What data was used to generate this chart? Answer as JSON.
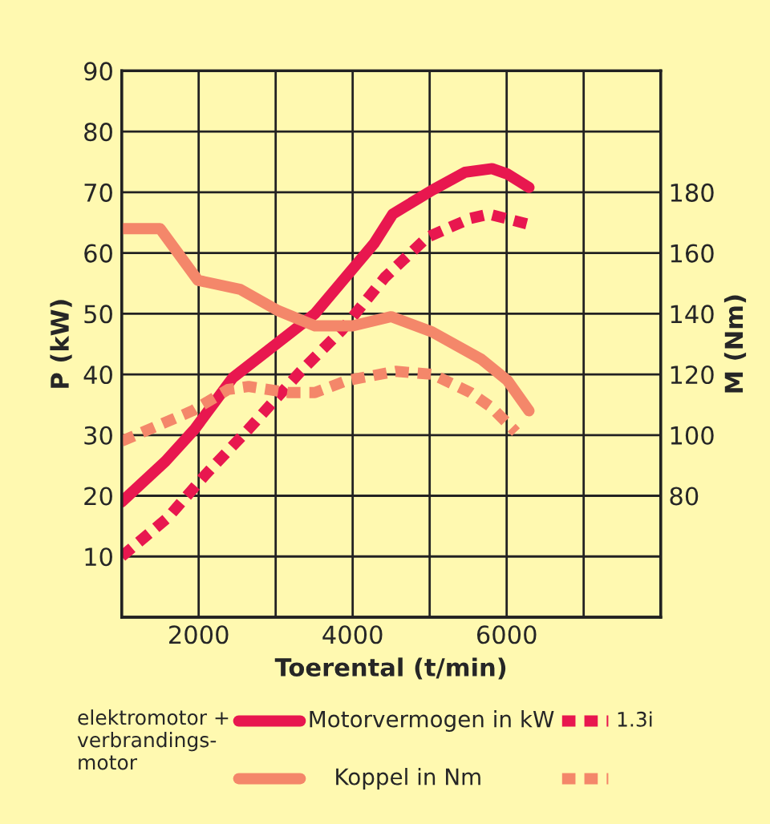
{
  "chart_data": {
    "type": "line",
    "xlabel": "Toerental (t/min)",
    "ylabel": "P (kW)",
    "y2label": "M (Nm)",
    "legend_title": "elektromotor +\nverbrandings-\nmotor",
    "xlim": [
      1000,
      8000
    ],
    "xticks": [
      {
        "value": 1000,
        "label": null
      },
      2000,
      {
        "value": 3000,
        "label": null
      },
      4000,
      {
        "value": 5000,
        "label": null
      },
      6000,
      {
        "value": 7000,
        "label": null
      },
      {
        "value": 8000,
        "label": null
      }
    ],
    "ylim": [
      0,
      90
    ],
    "yticks": [
      10,
      20,
      30,
      40,
      50,
      60,
      70,
      80,
      90
    ],
    "y2lim": [
      40,
      220
    ],
    "y2ticks": [
      80,
      100,
      120,
      140,
      160,
      180
    ],
    "grid": true,
    "legend": "bottom",
    "series": [
      {
        "name": "Motorvermogen in kW",
        "color": "#e8174f",
        "line_style": "solid",
        "x": [
          1000,
          1570,
          1950,
          2440,
          3240,
          3510,
          4280,
          4520,
          5040,
          5460,
          5810,
          6010,
          6290
        ],
        "values": [
          19,
          25.7,
          31,
          39.4,
          47.3,
          50,
          61.6,
          66.4,
          70.4,
          73.3,
          73.9,
          73,
          70.8
        ]
      },
      {
        "name": "Koppel in Nm",
        "color": "#f4876a",
        "line_style": "solid",
        "axis": "y2",
        "x": [
          1000,
          1500,
          1990,
          2540,
          3030,
          3510,
          4000,
          4500,
          5030,
          5670,
          6010,
          6290
        ],
        "values": [
          168,
          168,
          151,
          148,
          141,
          136,
          136,
          139,
          134,
          125,
          118,
          108
        ]
      },
      {
        "name": "1.3i",
        "color": "#e8174f",
        "line_style": "dashed",
        "x": [
          1000,
          1600,
          2090,
          2650,
          3310,
          3860,
          4420,
          4970,
          5530,
          5770,
          6260
        ],
        "values": [
          10,
          16.4,
          23.5,
          31,
          40.3,
          47.3,
          56,
          62.6,
          65.7,
          66.4,
          64.8
        ]
      },
      {
        "color": "#f4876a",
        "line_style": "dashed",
        "axis": "y2",
        "x": [
          1000,
          1920,
          2380,
          2650,
          3170,
          3510,
          3930,
          4560,
          5040,
          5530,
          5810,
          6120
        ],
        "values": [
          98,
          108,
          115,
          116,
          114,
          114,
          118,
          121,
          120,
          114,
          109,
          101
        ]
      }
    ]
  }
}
